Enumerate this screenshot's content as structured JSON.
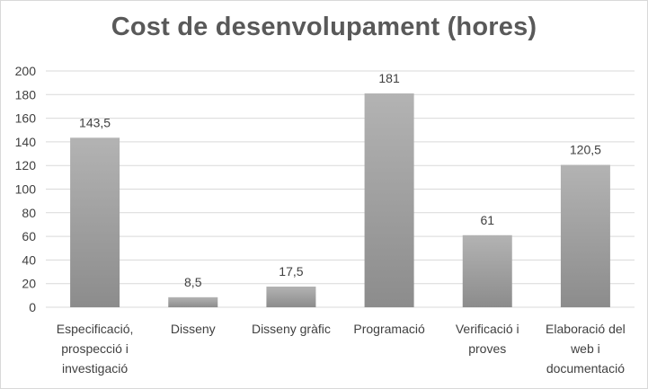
{
  "chart_data": {
    "type": "bar",
    "title": "Cost de desenvolupament (hores)",
    "xlabel": "",
    "ylabel": "",
    "ylim": [
      0,
      200
    ],
    "yticks": [
      0,
      20,
      40,
      60,
      80,
      100,
      120,
      140,
      160,
      180,
      200
    ],
    "grid": true,
    "legend": "none",
    "categories": [
      [
        "Especificació,",
        "prospecció i",
        "investigació"
      ],
      [
        "Disseny"
      ],
      [
        "Disseny gràfic"
      ],
      [
        "Programació"
      ],
      [
        "Verificació i",
        "proves"
      ],
      [
        "Elaboració del",
        "web i",
        "documentació"
      ]
    ],
    "values": [
      143.5,
      8.5,
      17.5,
      181,
      61,
      120.5
    ],
    "value_labels": [
      "143,5",
      "8,5",
      "17,5",
      "181",
      "61",
      "120,5"
    ],
    "colors": {
      "bar_top": "#b3b3b3",
      "bar_bottom": "#8c8c8c",
      "grid": "#d9d9d9",
      "text": "#404040"
    }
  }
}
